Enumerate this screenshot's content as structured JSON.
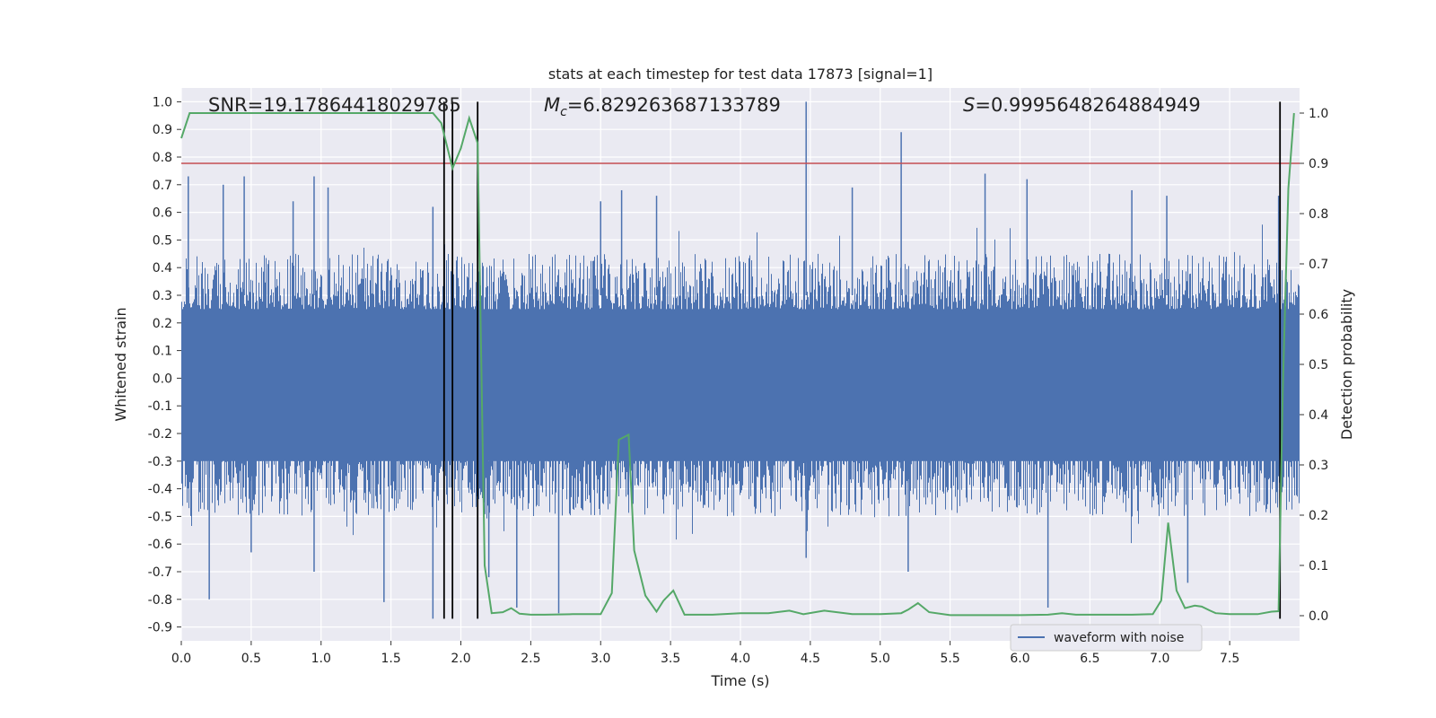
{
  "chart_data": {
    "type": "line",
    "title": "stats at each timestep for test data 17873 [signal=1]",
    "xlabel": "Time (s)",
    "ylabel": "Whitened strain",
    "ylabel_right": "Detection probability",
    "xlim": [
      0.0,
      8.0
    ],
    "ylim": [
      -0.95,
      1.05
    ],
    "ylim_right": [
      -0.05,
      1.05
    ],
    "x_ticks": [
      "0.0",
      "0.5",
      "1.0",
      "1.5",
      "2.0",
      "2.5",
      "3.0",
      "3.5",
      "4.0",
      "4.5",
      "5.0",
      "5.5",
      "6.0",
      "6.5",
      "7.0",
      "7.5"
    ],
    "y_ticks": [
      "1.0",
      "0.9",
      "0.8",
      "0.7",
      "0.6",
      "0.5",
      "0.4",
      "0.3",
      "0.2",
      "0.1",
      "0.0",
      "-0.1",
      "-0.2",
      "-0.3",
      "-0.4",
      "-0.5",
      "-0.6",
      "-0.7",
      "-0.8",
      "-0.9"
    ],
    "y_ticks_right": [
      "1.0",
      "0.9",
      "0.8",
      "0.7",
      "0.6",
      "0.5",
      "0.4",
      "0.3",
      "0.2",
      "0.1",
      "0.0"
    ],
    "grid": true,
    "legend_position": "lower-right",
    "annotations": {
      "snr": "SNR=19.17864418029785",
      "mc": "=6.829263687133789",
      "s": "=0.9995648264884949"
    },
    "threshold": {
      "value": 0.9,
      "axis": "right",
      "color": "#c44e52"
    },
    "vertical_lines": [
      1.88,
      1.94,
      2.12,
      7.86
    ],
    "colors": {
      "waveform": "#4c72b0",
      "probability": "#55a868",
      "threshold": "#c44e52",
      "markers": "#000000",
      "background": "#eaeaf2"
    },
    "series": [
      {
        "name": "waveform with noise",
        "axis": "left",
        "style": "noise-band",
        "envelope_upper": 0.45,
        "envelope_lower": -0.5,
        "spikes": [
          [
            0.05,
            0.73
          ],
          [
            0.2,
            -0.8
          ],
          [
            0.3,
            0.7
          ],
          [
            0.45,
            0.73
          ],
          [
            0.5,
            -0.63
          ],
          [
            0.8,
            0.64
          ],
          [
            0.95,
            0.73
          ],
          [
            0.95,
            -0.7
          ],
          [
            1.05,
            0.69
          ],
          [
            1.45,
            -0.81
          ],
          [
            1.8,
            0.62
          ],
          [
            1.8,
            -0.87
          ],
          [
            2.2,
            -0.72
          ],
          [
            2.4,
            -0.83
          ],
          [
            2.7,
            -0.85
          ],
          [
            3.0,
            0.64
          ],
          [
            3.15,
            0.68
          ],
          [
            3.4,
            0.66
          ],
          [
            4.47,
            1.0
          ],
          [
            4.47,
            -0.65
          ],
          [
            4.8,
            0.69
          ],
          [
            5.15,
            0.89
          ],
          [
            5.2,
            -0.7
          ],
          [
            5.75,
            0.74
          ],
          [
            6.05,
            0.72
          ],
          [
            6.2,
            -0.83
          ],
          [
            6.8,
            0.68
          ],
          [
            7.05,
            0.66
          ],
          [
            7.2,
            -0.74
          ],
          [
            7.85,
            0.66
          ]
        ]
      },
      {
        "name": "",
        "axis": "right",
        "x": [
          0.0,
          0.06,
          0.2,
          0.4,
          0.6,
          0.8,
          1.0,
          1.2,
          1.4,
          1.6,
          1.7,
          1.8,
          1.86,
          1.94,
          2.0,
          2.06,
          2.12,
          2.17,
          2.22,
          2.3,
          2.36,
          2.42,
          2.5,
          2.6,
          2.8,
          3.0,
          3.08,
          3.13,
          3.2,
          3.24,
          3.32,
          3.4,
          3.45,
          3.52,
          3.6,
          3.8,
          4.0,
          4.2,
          4.35,
          4.45,
          4.6,
          4.8,
          5.0,
          5.15,
          5.2,
          5.27,
          5.35,
          5.5,
          5.8,
          6.0,
          6.2,
          6.3,
          6.4,
          6.6,
          6.8,
          6.95,
          7.01,
          7.06,
          7.12,
          7.18,
          7.25,
          7.3,
          7.36,
          7.4,
          7.5,
          7.7,
          7.8,
          7.85,
          7.88,
          7.92,
          7.96
        ],
        "y": [
          0.95,
          1.0,
          1.0,
          1.0,
          1.0,
          1.0,
          1.0,
          1.0,
          1.0,
          1.0,
          1.0,
          1.0,
          0.98,
          0.89,
          0.93,
          0.99,
          0.94,
          0.1,
          0.005,
          0.007,
          0.015,
          0.004,
          0.002,
          0.002,
          0.003,
          0.003,
          0.045,
          0.35,
          0.36,
          0.13,
          0.04,
          0.008,
          0.03,
          0.05,
          0.002,
          0.002,
          0.005,
          0.005,
          0.01,
          0.003,
          0.01,
          0.003,
          0.003,
          0.005,
          0.012,
          0.025,
          0.007,
          0.001,
          0.001,
          0.001,
          0.002,
          0.005,
          0.002,
          0.002,
          0.002,
          0.003,
          0.03,
          0.185,
          0.05,
          0.015,
          0.02,
          0.018,
          0.01,
          0.005,
          0.003,
          0.003,
          0.008,
          0.009,
          0.45,
          0.85,
          1.0
        ]
      }
    ]
  }
}
